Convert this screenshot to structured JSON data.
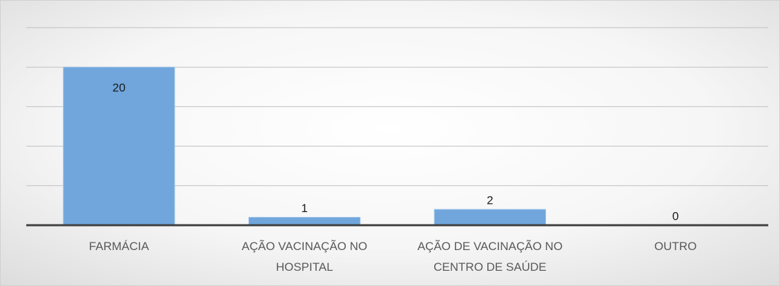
{
  "chart_data": {
    "type": "bar",
    "categories": [
      "FARMÁCIA",
      "AÇÃO VACINAÇÃO NO HOSPITAL",
      "AÇÃO DE VACINAÇÃO NO CENTRO DE SAÚDE",
      "OUTRO"
    ],
    "values": [
      20,
      1,
      2,
      0
    ],
    "color": "#70a6dc",
    "ylim": [
      0,
      25
    ],
    "yticks": [
      0,
      5,
      10,
      15,
      20,
      25
    ],
    "grid": true
  }
}
